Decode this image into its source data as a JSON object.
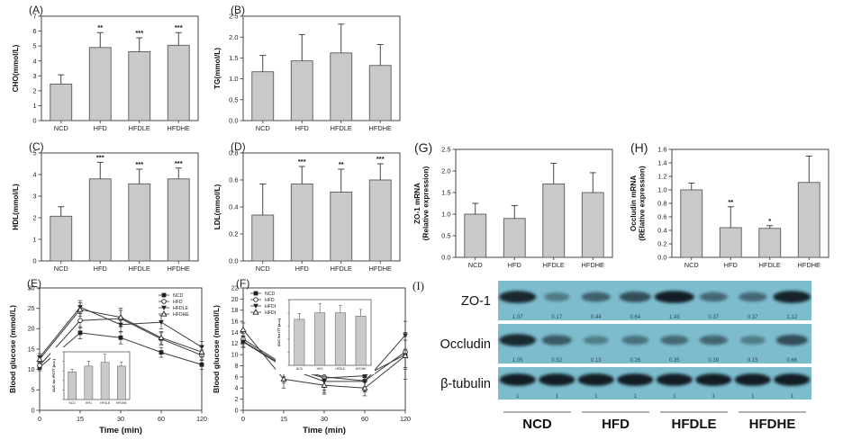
{
  "colors": {
    "bar_fill": "#c9c9c9",
    "bar_stroke": "#5a5a5a",
    "axis": "#444444",
    "line": "#3a3a3a",
    "blot_bg": "#7cbccd",
    "band": "#0a141c",
    "blot_value_text": "#2b4a56"
  },
  "chart_data": [
    {
      "panel": "A",
      "letter": "(A)",
      "type": "bar",
      "ylabel": "CHO(mmol/L)",
      "ylim": [
        0,
        7
      ],
      "ystep": 1,
      "ydec": 0,
      "categories": [
        "NCD",
        "HFD",
        "HFDLE",
        "HFDHE"
      ],
      "values": [
        2.45,
        4.9,
        4.62,
        5.05
      ],
      "errors": [
        0.62,
        1.0,
        0.93,
        0.85
      ],
      "sig": [
        "",
        "**",
        "***",
        "***"
      ]
    },
    {
      "panel": "B",
      "letter": "(B)",
      "type": "bar",
      "ylabel": "TG(mmol/L)",
      "ylim": [
        0,
        2.5
      ],
      "ystep": 0.5,
      "ydec": 1,
      "categories": [
        "NCD",
        "HFD",
        "HFDLE",
        "HFDHE"
      ],
      "values": [
        1.17,
        1.43,
        1.62,
        1.32
      ],
      "errors": [
        0.39,
        0.63,
        0.69,
        0.5
      ],
      "sig": [
        "",
        "",
        "",
        ""
      ]
    },
    {
      "panel": "C",
      "letter": "(C)",
      "type": "bar",
      "ylabel": "HDL(mmol/L)",
      "ylim": [
        0,
        5
      ],
      "ystep": 1,
      "ydec": 0,
      "categories": [
        "NCD",
        "HFD",
        "HFDLE",
        "HFDHE"
      ],
      "values": [
        2.07,
        3.8,
        3.57,
        3.8
      ],
      "errors": [
        0.44,
        0.77,
        0.68,
        0.5
      ],
      "sig": [
        "",
        "***",
        "***",
        "***"
      ]
    },
    {
      "panel": "D",
      "letter": "(D)",
      "type": "bar",
      "ylabel": "LDL(mmol/L)",
      "ylim": [
        0,
        0.8
      ],
      "ystep": 0.2,
      "ydec": 1,
      "categories": [
        "NCD",
        "HFD",
        "HFDLE",
        "HFDHE"
      ],
      "values": [
        0.34,
        0.57,
        0.51,
        0.6
      ],
      "errors": [
        0.23,
        0.13,
        0.17,
        0.12
      ],
      "sig": [
        "",
        "***",
        "**",
        "***"
      ]
    },
    {
      "panel": "E",
      "letter": "(E)",
      "type": "line",
      "ylabel": "Blood glucose (mmol/L)",
      "xlabel": "Time (min)",
      "ylim": [
        0,
        30
      ],
      "ystep": 5,
      "ydec": 0,
      "x": [
        0,
        15,
        30,
        60,
        120
      ],
      "legend_pos": "top-right",
      "series": [
        {
          "name": "NCD",
          "marker": "square-filled",
          "values": [
            10.5,
            19.0,
            17.8,
            14.2,
            11.2
          ],
          "errors": [
            0.8,
            1.5,
            1.5,
            1.2,
            1.2
          ]
        },
        {
          "name": "HFD",
          "marker": "circle-open",
          "values": [
            11.0,
            22.0,
            22.5,
            17.5,
            13.5
          ],
          "errors": [
            0.8,
            1.8,
            2.0,
            1.5,
            1.3
          ]
        },
        {
          "name": "HFDLE",
          "marker": "triangle-down-filled",
          "values": [
            13.0,
            25.3,
            21.0,
            21.6,
            15.5
          ],
          "errors": [
            0.9,
            1.6,
            1.8,
            1.6,
            1.4
          ]
        },
        {
          "name": "HFDHE",
          "marker": "triangle-up-open",
          "values": [
            12.5,
            24.7,
            22.8,
            17.8,
            14.3
          ],
          "errors": [
            0.9,
            1.7,
            2.2,
            1.5,
            1.3
          ]
        }
      ],
      "inset": {
        "ylabel": "AUC for IPGTT (a.u.)",
        "categories": [
          "NCD",
          "HFD",
          "HFDLE",
          "HFDHE"
        ],
        "values": [
          1450,
          1750,
          1950,
          1750
        ],
        "errors": [
          130,
          260,
          420,
          210
        ],
        "ylim": [
          0,
          2500
        ],
        "pos": "bottom-left"
      }
    },
    {
      "panel": "F",
      "letter": "(F)",
      "type": "line",
      "ylabel": "Blood glucose (mmol/L)",
      "xlabel": "Time (min)",
      "ylim": [
        0,
        22
      ],
      "ystep": 2,
      "ydec": 0,
      "x": [
        0,
        15,
        30,
        60,
        120
      ],
      "legend_pos": "top-left",
      "series": [
        {
          "name": "NCD",
          "marker": "square-filled",
          "values": [
            12.4,
            8.0,
            5.8,
            6.2,
            10.0
          ],
          "errors": [
            1.0,
            2.0,
            2.2,
            2.0,
            2.6
          ]
        },
        {
          "name": "HFD",
          "marker": "circle-open",
          "values": [
            12.8,
            8.2,
            6.0,
            5.3,
            10.5
          ],
          "errors": [
            1.0,
            3.3,
            1.8,
            2.0,
            2.8
          ]
        },
        {
          "name": "HFDLE",
          "marker": "triangle-down-filled",
          "values": [
            12.3,
            7.8,
            5.2,
            5.2,
            13.5
          ],
          "errors": [
            1.0,
            1.8,
            2.0,
            1.8,
            2.5
          ]
        },
        {
          "name": "HFDHE",
          "marker": "triangle-up-open",
          "values": [
            14.5,
            5.6,
            4.5,
            4.0,
            9.8
          ],
          "errors": [
            1.2,
            1.6,
            1.6,
            1.4,
            4.2
          ]
        }
      ],
      "inset": {
        "ylabel": "AUC for ITT (a.u.)",
        "categories": [
          "NCD",
          "HFD",
          "HFDLE",
          "HFDHE"
        ],
        "values": [
          560,
          640,
          640,
          600
        ],
        "errors": [
          70,
          110,
          90,
          80
        ],
        "ylim": [
          0,
          800
        ],
        "pos": "top-center"
      }
    },
    {
      "panel": "G",
      "letter": "(G)",
      "type": "bar",
      "ylabel": [
        "ZO-1 mRNA",
        "(Relative expression)"
      ],
      "ylim": [
        0,
        2.5
      ],
      "ystep": 0.5,
      "ydec": 1,
      "categories": [
        "NCD",
        "HFD",
        "HFDLE",
        "HFDHE"
      ],
      "values": [
        1.0,
        0.9,
        1.7,
        1.5
      ],
      "errors": [
        0.25,
        0.3,
        0.48,
        0.46
      ],
      "sig": [
        "",
        "",
        "",
        ""
      ]
    },
    {
      "panel": "H",
      "letter": "(H)",
      "type": "bar",
      "ylabel": [
        "Occludin mRNA",
        "(RElative expression)"
      ],
      "ylim": [
        0,
        1.6
      ],
      "ystep": 0.2,
      "ydec": 1,
      "categories": [
        "NCD",
        "HFD",
        "HFDLE",
        "HFDHE"
      ],
      "values": [
        1.0,
        0.44,
        0.43,
        1.11
      ],
      "errors": [
        0.1,
        0.31,
        0.04,
        0.39
      ],
      "sig": [
        "",
        "**",
        "*",
        ""
      ]
    }
  ],
  "blot": {
    "letter": "(I)",
    "groups": [
      "NCD",
      "HFD",
      "HFDLE",
      "HFDHE"
    ],
    "rows": [
      {
        "label": "ZO-1",
        "values": [
          "1.07",
          "0.17",
          "0.44",
          "0.64",
          "1.43",
          "0.37",
          "0.37",
          "1.12"
        ]
      },
      {
        "label": "Occludin",
        "values": [
          "1.05",
          "0.52",
          "0.13",
          "0.26",
          "0.35",
          "0.39",
          "0.15",
          "0.66"
        ]
      },
      {
        "label": "β-tubulin",
        "values": [
          "1",
          "1",
          "1",
          "1",
          "1",
          "1",
          "1",
          "1"
        ]
      }
    ]
  }
}
